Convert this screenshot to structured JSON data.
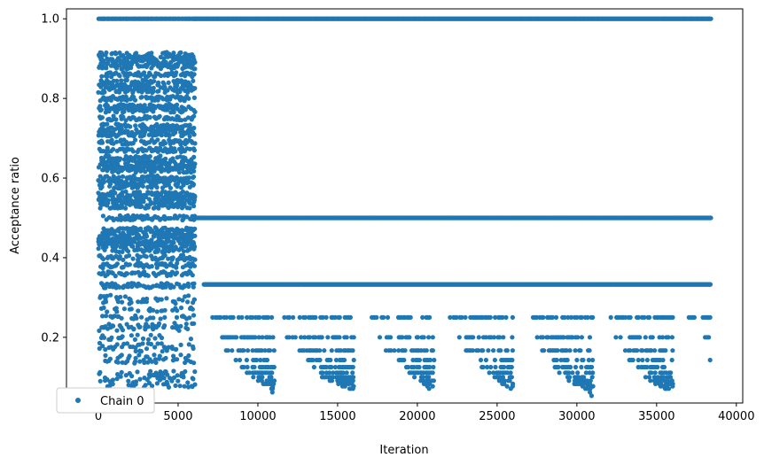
{
  "chart_data": {
    "type": "scatter",
    "title": "",
    "xlabel": "Iteration",
    "ylabel": "Acceptance ratio",
    "xlim": [
      -2000,
      40400
    ],
    "ylim": [
      0.035,
      1.025
    ],
    "xticks": [
      0,
      5000,
      10000,
      15000,
      20000,
      25000,
      30000,
      35000,
      40000
    ],
    "xtick_labels": [
      "0",
      "5000",
      "10000",
      "15000",
      "20000",
      "25000",
      "30000",
      "35000",
      "40000"
    ],
    "yticks": [
      0.2,
      0.4,
      0.6,
      0.8,
      1.0
    ],
    "ytick_labels": [
      "0.2",
      "0.4",
      "0.6",
      "0.8",
      "1.0"
    ],
    "grid": false,
    "legend_position": "lower-left",
    "marker_color": "#1f77b4",
    "series": [
      {
        "name": "Chain 0",
        "segments": [
          {
            "x_range": [
              0,
              6000
            ],
            "description": "dense scattered values",
            "levels": [
              1.0,
              0.91,
              0.9,
              0.89,
              0.88,
              0.86,
              0.84,
              0.83,
              0.82,
              0.8,
              0.78,
              0.77,
              0.75,
              0.73,
              0.72,
              0.71,
              0.69,
              0.67,
              0.65,
              0.64,
              0.63,
              0.62,
              0.6,
              0.59,
              0.58,
              0.56,
              0.55,
              0.54,
              0.53,
              0.5,
              0.47,
              0.46,
              0.45,
              0.44,
              0.43,
              0.42,
              0.4,
              0.38,
              0.36,
              0.33,
              0.3,
              0.29,
              0.27,
              0.25,
              0.23,
              0.22,
              0.2,
              0.18,
              0.17,
              0.15,
              0.14,
              0.11,
              0.1,
              0.09,
              0.08
            ]
          },
          {
            "x_range": [
              6000,
              38400
            ],
            "description": "quantized bands",
            "bands": [
              {
                "y": 1.0,
                "x_ranges": [
                  [
                    6000,
                    38400
                  ]
                ]
              },
              {
                "y": 0.5,
                "x_ranges": [
                  [
                    6000,
                    38400
                  ]
                ]
              },
              {
                "y": 0.333,
                "x_ranges": [
                  [
                    6600,
                    38400
                  ]
                ]
              },
              {
                "y": 0.25,
                "x_ranges": [
                  [
                    7000,
                    11000
                  ],
                  [
                    11500,
                    16000
                  ],
                  [
                    17000,
                    21000
                  ],
                  [
                    22000,
                    26000
                  ],
                  [
                    27000,
                    31000
                  ],
                  [
                    32000,
                    36000
                  ],
                  [
                    37000,
                    38400
                  ]
                ]
              },
              {
                "y": 0.2,
                "x_ranges": [
                  [
                    7300,
                    11000
                  ],
                  [
                    11800,
                    16000
                  ],
                  [
                    17500,
                    21000
                  ],
                  [
                    22600,
                    26000
                  ],
                  [
                    27400,
                    31000
                  ],
                  [
                    32400,
                    36000
                  ],
                  [
                    38000,
                    38400
                  ]
                ]
              },
              {
                "y": 0.167,
                "x_ranges": [
                  [
                    8000,
                    11000
                  ],
                  [
                    12500,
                    16000
                  ],
                  [
                    18000,
                    21000
                  ],
                  [
                    23000,
                    26000
                  ],
                  [
                    27800,
                    31000
                  ],
                  [
                    33000,
                    36000
                  ]
                ]
              },
              {
                "y": 0.143,
                "x_ranges": [
                  [
                    8600,
                    11000
                  ],
                  [
                    13000,
                    16000
                  ],
                  [
                    18800,
                    21000
                  ],
                  [
                    23600,
                    26000
                  ],
                  [
                    28300,
                    31000
                  ],
                  [
                    33300,
                    36000
                  ],
                  [
                    38200,
                    38400
                  ]
                ]
              },
              {
                "y": 0.125,
                "x_ranges": [
                  [
                    9000,
                    11000
                  ],
                  [
                    13500,
                    16000
                  ],
                  [
                    19200,
                    21000
                  ],
                  [
                    24000,
                    26000
                  ],
                  [
                    28600,
                    31000
                  ],
                  [
                    33700,
                    36000
                  ]
                ]
              },
              {
                "y": 0.111,
                "x_ranges": [
                  [
                    9300,
                    11000
                  ],
                  [
                    13700,
                    16000
                  ],
                  [
                    19500,
                    21000
                  ],
                  [
                    24400,
                    26000
                  ],
                  [
                    28900,
                    31000
                  ],
                  [
                    34000,
                    36000
                  ]
                ]
              },
              {
                "y": 0.1,
                "x_ranges": [
                  [
                    9700,
                    11000
                  ],
                  [
                    14000,
                    16000
                  ],
                  [
                    19800,
                    21000
                  ],
                  [
                    24800,
                    26000
                  ],
                  [
                    29200,
                    31000
                  ],
                  [
                    34300,
                    36000
                  ]
                ]
              },
              {
                "y": 0.091,
                "x_ranges": [
                  [
                    10000,
                    11000
                  ],
                  [
                    14400,
                    16000
                  ],
                  [
                    20100,
                    21000
                  ],
                  [
                    25000,
                    26000
                  ],
                  [
                    29500,
                    31000
                  ],
                  [
                    34600,
                    36000
                  ]
                ]
              },
              {
                "y": 0.083,
                "x_ranges": [
                  [
                    10300,
                    11000
                  ],
                  [
                    14800,
                    16000
                  ],
                  [
                    20300,
                    21000
                  ],
                  [
                    25200,
                    26000
                  ],
                  [
                    29800,
                    31000
                  ],
                  [
                    34900,
                    36000
                  ]
                ]
              },
              {
                "y": 0.077,
                "x_ranges": [
                  [
                    10600,
                    11000
                  ],
                  [
                    15200,
                    16000
                  ],
                  [
                    20500,
                    21000
                  ],
                  [
                    25500,
                    26000
                  ],
                  [
                    30100,
                    31000
                  ],
                  [
                    35200,
                    36000
                  ]
                ]
              },
              {
                "y": 0.071,
                "x_ranges": [
                  [
                    10800,
                    11000
                  ],
                  [
                    15600,
                    16000
                  ],
                  [
                    20700,
                    21000
                  ],
                  [
                    25700,
                    26000
                  ],
                  [
                    30400,
                    31000
                  ],
                  [
                    35500,
                    36000
                  ]
                ]
              },
              {
                "y": 0.062,
                "x_ranges": [
                  [
                    10900,
                    11000
                  ],
                  [
                    20900,
                    21000
                  ],
                  [
                    30800,
                    31000
                  ]
                ]
              },
              {
                "y": 0.053,
                "x_ranges": [
                  [
                    30900,
                    31000
                  ]
                ]
              }
            ]
          }
        ]
      }
    ]
  }
}
